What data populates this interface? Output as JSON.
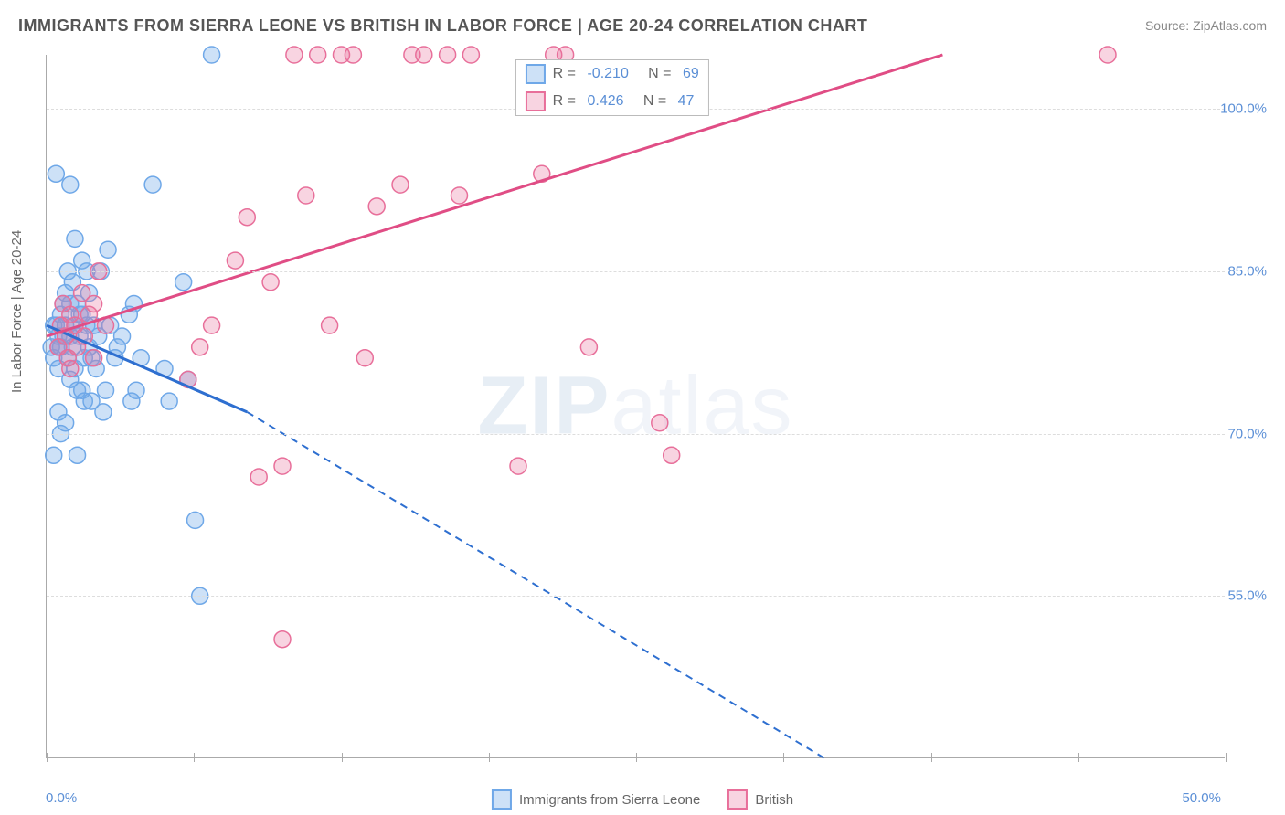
{
  "title": "IMMIGRANTS FROM SIERRA LEONE VS BRITISH IN LABOR FORCE | AGE 20-24 CORRELATION CHART",
  "source": "Source: ZipAtlas.com",
  "y_axis_label": "In Labor Force | Age 20-24",
  "watermark_primary": "ZIP",
  "watermark_secondary": "atlas",
  "chart": {
    "type": "scatter",
    "xlim": [
      0,
      50
    ],
    "ylim": [
      40,
      105
    ],
    "x_tick_min_label": "0.0%",
    "x_tick_max_label": "50.0%",
    "x_tick_positions": [
      0,
      6.25,
      12.5,
      18.75,
      25,
      31.25,
      37.5,
      43.75,
      50
    ],
    "y_ticks": [
      {
        "value": 55,
        "label": "55.0%"
      },
      {
        "value": 70,
        "label": "70.0%"
      },
      {
        "value": 85,
        "label": "85.0%"
      },
      {
        "value": 100,
        "label": "100.0%"
      }
    ],
    "grid_color": "#dddddd",
    "background_color": "#ffffff",
    "border_color": "#aaaaaa",
    "series": [
      {
        "name": "Immigrants from Sierra Leone",
        "short": "blue",
        "marker_color": "#6fa8e8",
        "marker_fill": "rgba(111,168,232,0.35)",
        "line_color": "#2e6fd0",
        "r_value": "-0.210",
        "n_value": "69",
        "marker_radius": 9,
        "points": [
          [
            0.2,
            78
          ],
          [
            0.3,
            80
          ],
          [
            0.3,
            77
          ],
          [
            0.5,
            76
          ],
          [
            0.5,
            79
          ],
          [
            0.6,
            81
          ],
          [
            0.6,
            78
          ],
          [
            0.7,
            82
          ],
          [
            0.8,
            83
          ],
          [
            0.8,
            80
          ],
          [
            0.9,
            77
          ],
          [
            0.9,
            85
          ],
          [
            1.0,
            75
          ],
          [
            1.0,
            79
          ],
          [
            1.1,
            78
          ],
          [
            1.1,
            84
          ],
          [
            1.2,
            80
          ],
          [
            1.2,
            76
          ],
          [
            1.3,
            82
          ],
          [
            1.3,
            74
          ],
          [
            1.4,
            79
          ],
          [
            1.5,
            86
          ],
          [
            1.5,
            81
          ],
          [
            1.6,
            77
          ],
          [
            1.6,
            73
          ],
          [
            1.7,
            80
          ],
          [
            1.8,
            78
          ],
          [
            1.8,
            83
          ],
          [
            0.3,
            68
          ],
          [
            0.4,
            94
          ],
          [
            0.5,
            72
          ],
          [
            0.6,
            70
          ],
          [
            0.8,
            71
          ],
          [
            1.0,
            93
          ],
          [
            1.2,
            88
          ],
          [
            1.3,
            68
          ],
          [
            1.5,
            74
          ],
          [
            1.7,
            85
          ],
          [
            1.9,
            77
          ],
          [
            2.0,
            80
          ],
          [
            2.1,
            76
          ],
          [
            2.2,
            79
          ],
          [
            2.4,
            72
          ],
          [
            2.5,
            74
          ],
          [
            2.7,
            80
          ],
          [
            2.9,
            77
          ],
          [
            3.0,
            78
          ],
          [
            3.2,
            79
          ],
          [
            3.5,
            81
          ],
          [
            3.6,
            73
          ],
          [
            3.7,
            82
          ],
          [
            3.8,
            74
          ],
          [
            4.0,
            77
          ],
          [
            4.5,
            93
          ],
          [
            5.0,
            76
          ],
          [
            5.2,
            73
          ],
          [
            5.8,
            84
          ],
          [
            6.0,
            75
          ],
          [
            6.3,
            62
          ],
          [
            2.3,
            85
          ],
          [
            2.6,
            87
          ],
          [
            0.4,
            80
          ],
          [
            0.5,
            78
          ],
          [
            0.7,
            79
          ],
          [
            1.9,
            73
          ],
          [
            6.5,
            55
          ],
          [
            7.0,
            105
          ],
          [
            1.0,
            82
          ],
          [
            1.4,
            81
          ]
        ],
        "trend": {
          "x1": 0,
          "y1": 80,
          "x2_solid": 8.5,
          "y2_solid": 72,
          "x2_dash": 33,
          "y2_dash": 40
        }
      },
      {
        "name": "British",
        "short": "pink",
        "marker_color": "#e86f9a",
        "marker_fill": "rgba(232,111,154,0.30)",
        "line_color": "#e04d85",
        "r_value": "0.426",
        "n_value": "47",
        "marker_radius": 9,
        "points": [
          [
            0.5,
            78
          ],
          [
            0.6,
            80
          ],
          [
            0.7,
            82
          ],
          [
            0.8,
            79
          ],
          [
            0.9,
            77
          ],
          [
            1.0,
            81
          ],
          [
            1.0,
            76
          ],
          [
            1.2,
            80
          ],
          [
            1.3,
            78
          ],
          [
            1.5,
            83
          ],
          [
            1.6,
            79
          ],
          [
            1.8,
            81
          ],
          [
            2.0,
            77
          ],
          [
            2.0,
            82
          ],
          [
            2.2,
            85
          ],
          [
            2.5,
            80
          ],
          [
            6.0,
            75
          ],
          [
            6.5,
            78
          ],
          [
            7.0,
            80
          ],
          [
            8.0,
            86
          ],
          [
            8.5,
            90
          ],
          [
            9.0,
            66
          ],
          [
            9.5,
            84
          ],
          [
            10,
            67
          ],
          [
            10.5,
            105
          ],
          [
            11,
            92
          ],
          [
            11.5,
            105
          ],
          [
            12,
            80
          ],
          [
            12.5,
            105
          ],
          [
            13,
            105
          ],
          [
            13.5,
            77
          ],
          [
            14,
            91
          ],
          [
            15,
            93
          ],
          [
            15.5,
            105
          ],
          [
            16,
            105
          ],
          [
            17,
            105
          ],
          [
            17.5,
            92
          ],
          [
            18,
            105
          ],
          [
            20,
            67
          ],
          [
            21,
            94
          ],
          [
            21.5,
            105
          ],
          [
            22,
            105
          ],
          [
            23,
            78
          ],
          [
            26,
            71
          ],
          [
            26.5,
            68
          ],
          [
            10,
            51
          ],
          [
            45,
            105
          ]
        ],
        "trend": {
          "x1": 0,
          "y1": 79,
          "x2_solid": 38,
          "y2_solid": 105,
          "x2_dash": 38,
          "y2_dash": 105
        }
      }
    ]
  },
  "legend_bottom": [
    {
      "label": "Immigrants from Sierra Leone",
      "fill": "rgba(111,168,232,0.35)",
      "stroke": "#6fa8e8"
    },
    {
      "label": "British",
      "fill": "rgba(232,111,154,0.30)",
      "stroke": "#e86f9a"
    }
  ]
}
